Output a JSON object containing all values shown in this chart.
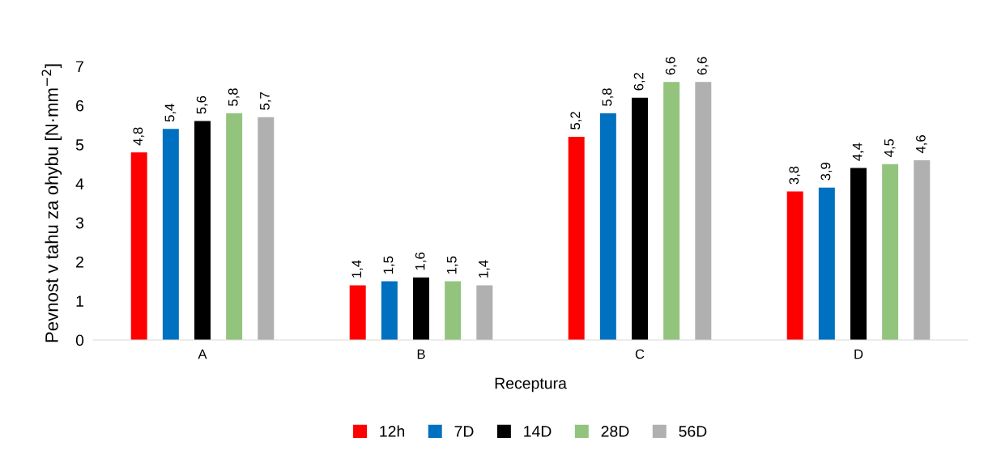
{
  "chart_data": {
    "type": "bar",
    "xlabel": "Receptura",
    "ylabel": "Pevnost v tahu za ohybu [N·mm$^{−2}$]",
    "categories": [
      "A",
      "B",
      "C",
      "D"
    ],
    "ylim": [
      0,
      7
    ],
    "yticks": [
      0,
      1,
      2,
      3,
      4,
      5,
      6,
      7
    ],
    "grid": false,
    "legend": "bottom",
    "series": [
      {
        "name": "12h",
        "color": "#ff0000",
        "values": [
          4.8,
          1.4,
          5.2,
          3.8
        ],
        "value_labels": [
          "4,8",
          "1,4",
          "5,2",
          "3,8"
        ]
      },
      {
        "name": "7D",
        "color": "#0070c0",
        "values": [
          5.4,
          1.5,
          5.8,
          3.9
        ],
        "value_labels": [
          "5,4",
          "1,5",
          "5,8",
          "3,9"
        ]
      },
      {
        "name": "14D",
        "color": "#000000",
        "values": [
          5.6,
          1.6,
          6.2,
          4.4
        ],
        "value_labels": [
          "5,6",
          "1,6",
          "6,2",
          "4,4"
        ]
      },
      {
        "name": "28D",
        "color": "#93c47d",
        "values": [
          5.8,
          1.5,
          6.6,
          4.5
        ],
        "value_labels": [
          "5,8",
          "1,5",
          "6,6",
          "4,5"
        ]
      },
      {
        "name": "56D",
        "color": "#b0b0b0",
        "values": [
          5.7,
          1.4,
          6.6,
          4.6
        ],
        "value_labels": [
          "5,7",
          "1,4",
          "6,6",
          "4,6"
        ]
      }
    ]
  }
}
